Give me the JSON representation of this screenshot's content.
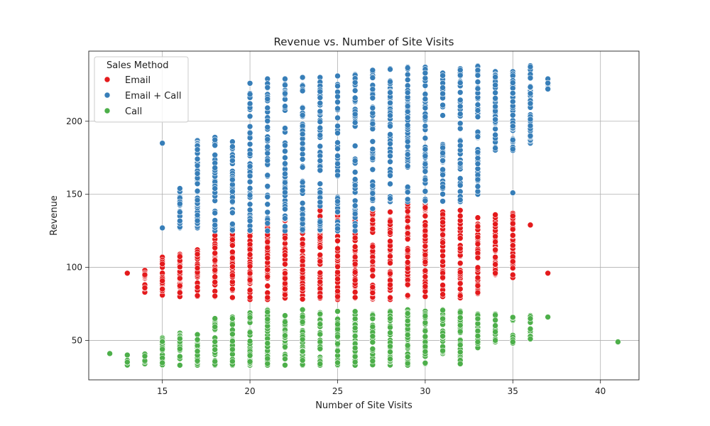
{
  "chart_data": {
    "type": "scatter",
    "title": "Revenue vs. Number of Site Visits",
    "xlabel": "Number of Site Visits",
    "ylabel": "Revenue",
    "xlim": [
      10.8,
      42.2
    ],
    "ylim": [
      23,
      248
    ],
    "xticks": [
      15,
      20,
      25,
      30,
      35,
      40
    ],
    "yticks": [
      50,
      100,
      150,
      200
    ],
    "grid": true,
    "legend": {
      "title": "Sales Method",
      "placement": "top-left"
    },
    "series": [
      {
        "name": "Email",
        "color": "#e41a1c",
        "columns": [
          {
            "x": 13,
            "min": 96,
            "max": 96
          },
          {
            "x": 14,
            "min": 83,
            "max": 98
          },
          {
            "x": 15,
            "min": 81,
            "max": 107
          },
          {
            "x": 16,
            "min": 80,
            "max": 109
          },
          {
            "x": 17,
            "min": 80,
            "max": 112
          },
          {
            "x": 18,
            "min": 80,
            "max": 122
          },
          {
            "x": 19,
            "min": 79,
            "max": 124
          },
          {
            "x": 20,
            "min": 78,
            "max": 127
          },
          {
            "x": 21,
            "min": 78,
            "max": 132
          },
          {
            "x": 22,
            "min": 79,
            "max": 132
          },
          {
            "x": 23,
            "min": 78,
            "max": 135
          },
          {
            "x": 24,
            "min": 79,
            "max": 140
          },
          {
            "x": 25,
            "min": 78,
            "max": 140
          },
          {
            "x": 26,
            "min": 79,
            "max": 138
          },
          {
            "x": 27,
            "min": 78,
            "max": 140
          },
          {
            "x": 28,
            "min": 78,
            "max": 138
          },
          {
            "x": 29,
            "min": 80,
            "max": 146
          },
          {
            "x": 30,
            "min": 80,
            "max": 145
          },
          {
            "x": 31,
            "min": 80,
            "max": 138
          },
          {
            "x": 32,
            "min": 79,
            "max": 139
          },
          {
            "x": 33,
            "min": 82,
            "max": 134
          },
          {
            "x": 34,
            "min": 95,
            "max": 136
          },
          {
            "x": 35,
            "min": 93,
            "max": 137
          },
          {
            "x": 36,
            "min": 129,
            "max": 129
          },
          {
            "x": 37,
            "min": 96,
            "max": 96
          }
        ],
        "points": [
          [
            14,
            86
          ],
          [
            34,
            136
          ],
          [
            35,
            126
          ],
          [
            35,
            115
          ],
          [
            35,
            104
          ],
          [
            34,
            112
          ],
          [
            34,
            107
          ],
          [
            34,
            102
          ]
        ]
      },
      {
        "name": "Email + Call",
        "color": "#377eb8",
        "columns": [
          {
            "x": 15,
            "min": 127,
            "max": 127
          },
          {
            "x": 16,
            "min": 127,
            "max": 154
          },
          {
            "x": 17,
            "min": 127,
            "max": 187
          },
          {
            "x": 18,
            "min": 125,
            "max": 189
          },
          {
            "x": 19,
            "min": 125,
            "max": 186
          },
          {
            "x": 20,
            "min": 125,
            "max": 226
          },
          {
            "x": 21,
            "min": 125,
            "max": 229
          },
          {
            "x": 22,
            "min": 125,
            "max": 229
          },
          {
            "x": 23,
            "min": 125,
            "max": 230
          },
          {
            "x": 24,
            "min": 125,
            "max": 230
          },
          {
            "x": 25,
            "min": 125,
            "max": 231
          },
          {
            "x": 26,
            "min": 125,
            "max": 232
          },
          {
            "x": 27,
            "min": 140,
            "max": 235
          },
          {
            "x": 28,
            "min": 145,
            "max": 236
          },
          {
            "x": 29,
            "min": 145,
            "max": 237
          },
          {
            "x": 30,
            "min": 145,
            "max": 237
          },
          {
            "x": 31,
            "min": 145,
            "max": 233
          },
          {
            "x": 32,
            "min": 145,
            "max": 236
          },
          {
            "x": 33,
            "min": 150,
            "max": 238
          },
          {
            "x": 34,
            "min": 180,
            "max": 234
          },
          {
            "x": 35,
            "min": 180,
            "max": 234
          },
          {
            "x": 36,
            "min": 185,
            "max": 238
          },
          {
            "x": 37,
            "min": 222,
            "max": 229
          }
        ],
        "points": [
          [
            15,
            185
          ],
          [
            16,
            154
          ],
          [
            17,
            146
          ],
          [
            18,
            154
          ],
          [
            19,
            160
          ],
          [
            20,
            192
          ],
          [
            35,
            151
          ],
          [
            36,
            190
          ],
          [
            22,
            164
          ],
          [
            25,
            163
          ],
          [
            30,
            160
          ]
        ]
      },
      {
        "name": "Call",
        "color": "#4daf4a",
        "columns": [
          {
            "x": 12,
            "min": 41,
            "max": 41
          },
          {
            "x": 13,
            "min": 33,
            "max": 40
          },
          {
            "x": 14,
            "min": 34,
            "max": 41
          },
          {
            "x": 15,
            "min": 33,
            "max": 52
          },
          {
            "x": 16,
            "min": 33,
            "max": 55
          },
          {
            "x": 17,
            "min": 33,
            "max": 54
          },
          {
            "x": 18,
            "min": 33,
            "max": 65
          },
          {
            "x": 19,
            "min": 33,
            "max": 66
          },
          {
            "x": 20,
            "min": 33,
            "max": 69
          },
          {
            "x": 21,
            "min": 33,
            "max": 71
          },
          {
            "x": 22,
            "min": 33,
            "max": 67
          },
          {
            "x": 23,
            "min": 33,
            "max": 71
          },
          {
            "x": 24,
            "min": 33,
            "max": 69
          },
          {
            "x": 25,
            "min": 33,
            "max": 70
          },
          {
            "x": 26,
            "min": 33,
            "max": 70
          },
          {
            "x": 27,
            "min": 33,
            "max": 68
          },
          {
            "x": 28,
            "min": 33,
            "max": 70
          },
          {
            "x": 29,
            "min": 33,
            "max": 71
          },
          {
            "x": 30,
            "min": 34,
            "max": 70
          },
          {
            "x": 31,
            "min": 41,
            "max": 71
          },
          {
            "x": 32,
            "min": 34,
            "max": 70
          },
          {
            "x": 33,
            "min": 45,
            "max": 68
          },
          {
            "x": 34,
            "min": 49,
            "max": 68
          },
          {
            "x": 35,
            "min": 48,
            "max": 66
          },
          {
            "x": 36,
            "min": 51,
            "max": 67
          },
          {
            "x": 37,
            "min": 66,
            "max": 66
          },
          {
            "x": 41,
            "min": 49,
            "max": 49
          }
        ],
        "points": [
          [
            18,
            65
          ],
          [
            19,
            65
          ],
          [
            32,
            34
          ],
          [
            32,
            42
          ],
          [
            33,
            49
          ],
          [
            34,
            50
          ],
          [
            35,
            49
          ],
          [
            36,
            51
          ]
        ]
      }
    ]
  }
}
